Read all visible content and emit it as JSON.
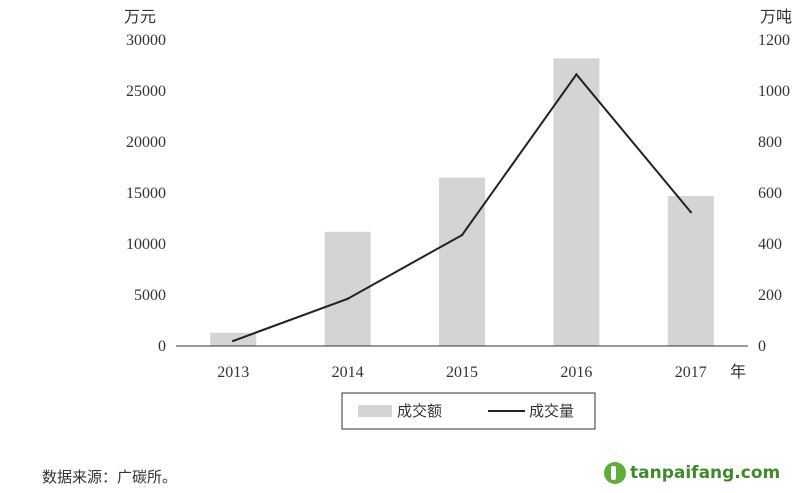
{
  "chart_data": {
    "type": "bar",
    "categories": [
      "2013",
      "2014",
      "2015",
      "2016",
      "2017"
    ],
    "series": [
      {
        "name": "成交额",
        "type": "bar",
        "axis": "left",
        "values": [
          1300,
          11200,
          16500,
          28200,
          14700
        ],
        "color": "#d4d4d4"
      },
      {
        "name": "成交量",
        "type": "line",
        "axis": "right",
        "values": [
          20,
          185,
          435,
          1065,
          525
        ],
        "color": "#222222"
      }
    ],
    "y_left": {
      "unit": "万元",
      "ylim": [
        0,
        30000
      ],
      "ticks": [
        "0",
        "5000",
        "10000",
        "15000",
        "20000",
        "25000",
        "30000"
      ]
    },
    "y_right": {
      "unit": "万吨",
      "ylim": [
        0,
        1200
      ],
      "ticks": [
        "0",
        "200",
        "400",
        "600",
        "800",
        "1000",
        "1200"
      ]
    },
    "xlabel": "年",
    "grid": false,
    "legend": "bottom-center"
  },
  "footer": {
    "source": "数据来源：广碳所。",
    "watermark": "tanpaifang.com"
  }
}
